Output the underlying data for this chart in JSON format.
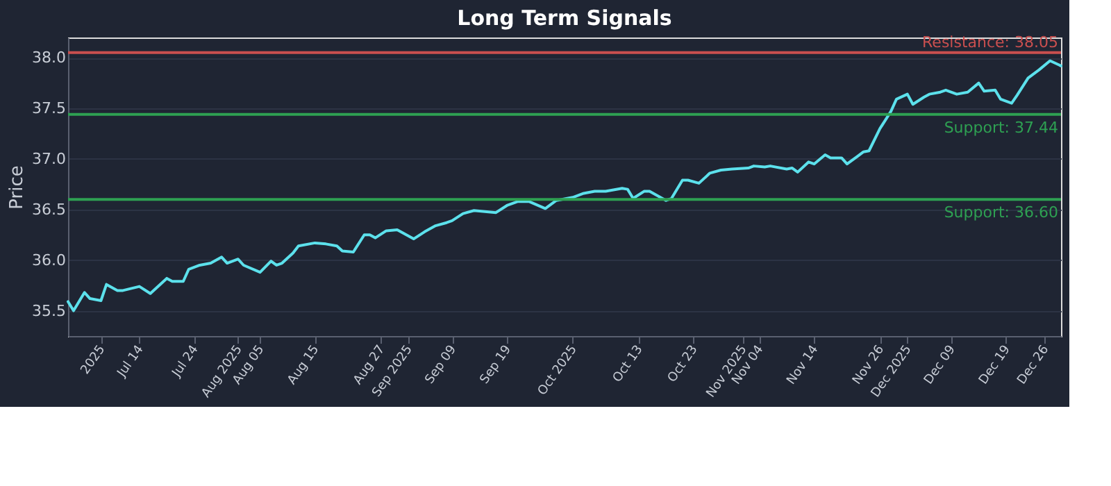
{
  "chart_data": {
    "type": "line",
    "title": "Long Term Signals",
    "ylabel": "Price",
    "x": [
      "2025-07-01",
      "2025-07-02",
      "2025-07-04",
      "2025-07-05",
      "2025-07-07",
      "2025-07-08",
      "2025-07-10",
      "2025-07-11",
      "2025-07-14",
      "2025-07-16",
      "2025-07-19",
      "2025-07-20",
      "2025-07-22",
      "2025-07-23",
      "2025-07-25",
      "2025-07-27",
      "2025-07-29",
      "2025-07-30",
      "2025-08-01",
      "2025-08-02",
      "2025-08-05",
      "2025-08-07",
      "2025-08-08",
      "2025-08-09",
      "2025-08-11",
      "2025-08-12",
      "2025-08-15",
      "2025-08-17",
      "2025-08-19",
      "2025-08-20",
      "2025-08-22",
      "2025-08-24",
      "2025-08-25",
      "2025-08-26",
      "2025-08-28",
      "2025-08-30",
      "2025-09-02",
      "2025-09-04",
      "2025-09-06",
      "2025-09-08",
      "2025-09-09",
      "2025-09-11",
      "2025-09-13",
      "2025-09-17",
      "2025-09-19",
      "2025-09-21",
      "2025-09-23",
      "2025-09-26",
      "2025-09-28",
      "2025-10-01",
      "2025-10-02",
      "2025-10-03",
      "2025-10-05",
      "2025-10-07",
      "2025-10-10",
      "2025-10-11",
      "2025-10-12",
      "2025-10-14",
      "2025-10-15",
      "2025-10-18",
      "2025-10-19",
      "2025-10-21",
      "2025-10-22",
      "2025-10-24",
      "2025-10-26",
      "2025-10-28",
      "2025-10-30",
      "2025-11-02",
      "2025-11-03",
      "2025-11-05",
      "2025-11-06",
      "2025-11-09",
      "2025-11-10",
      "2025-11-11",
      "2025-11-13",
      "2025-11-14",
      "2025-11-16",
      "2025-11-17",
      "2025-11-19",
      "2025-11-20",
      "2025-11-22",
      "2025-11-23",
      "2025-11-24",
      "2025-11-26",
      "2025-11-28",
      "2025-11-29",
      "2025-12-01",
      "2025-12-02",
      "2025-12-04",
      "2025-12-05",
      "2025-12-07",
      "2025-12-08",
      "2025-12-10",
      "2025-12-12",
      "2025-12-14",
      "2025-12-15",
      "2025-12-17",
      "2025-12-18",
      "2025-12-20",
      "2025-12-21",
      "2025-12-23",
      "2025-12-25",
      "2025-12-27",
      "2025-12-29"
    ],
    "series": [
      {
        "color": "#5ce1ec",
        "values": [
          35.59,
          35.5,
          35.68,
          35.62,
          35.6,
          35.76,
          35.7,
          35.7,
          35.74,
          35.67,
          35.82,
          35.79,
          35.79,
          35.91,
          35.95,
          35.97,
          36.03,
          35.97,
          36.01,
          35.95,
          35.88,
          35.99,
          35.95,
          35.97,
          36.07,
          36.14,
          36.17,
          36.16,
          36.14,
          36.09,
          36.08,
          36.25,
          36.25,
          36.22,
          36.29,
          36.3,
          36.21,
          36.28,
          36.34,
          36.37,
          36.39,
          36.46,
          36.49,
          36.47,
          36.54,
          36.58,
          36.58,
          36.51,
          36.59,
          36.62,
          36.64,
          36.66,
          36.68,
          36.68,
          36.71,
          36.7,
          36.61,
          36.68,
          36.68,
          36.59,
          36.61,
          36.79,
          36.79,
          36.76,
          36.86,
          36.89,
          36.9,
          36.91,
          36.93,
          36.92,
          36.93,
          36.9,
          36.91,
          36.87,
          36.97,
          36.95,
          37.04,
          37.01,
          37.01,
          36.95,
          37.03,
          37.07,
          37.08,
          37.3,
          37.47,
          37.59,
          37.64,
          37.54,
          37.61,
          37.64,
          37.66,
          37.68,
          37.64,
          37.66,
          37.75,
          37.67,
          37.68,
          37.59,
          37.55,
          37.63,
          37.8,
          37.88,
          37.97,
          37.92
        ]
      }
    ],
    "xlim": [
      "2025-07-01",
      "2025-12-29"
    ],
    "xticks": [
      {
        "value": "2025-07-07",
        "label": "2025"
      },
      {
        "value": "2025-07-14",
        "label": "Jul 14"
      },
      {
        "value": "2025-07-24",
        "label": "Jul 24"
      },
      {
        "value": "2025-08-01",
        "label": "Aug 2025"
      },
      {
        "value": "2025-08-05",
        "label": "Aug 05"
      },
      {
        "value": "2025-08-15",
        "label": "Aug 15"
      },
      {
        "value": "2025-08-27",
        "label": "Aug 27"
      },
      {
        "value": "2025-09-01",
        "label": "Sep 2025"
      },
      {
        "value": "2025-09-09",
        "label": "Sep 09"
      },
      {
        "value": "2025-09-19",
        "label": "Sep 19"
      },
      {
        "value": "2025-10-01",
        "label": "Oct 2025"
      },
      {
        "value": "2025-10-13",
        "label": "Oct 13"
      },
      {
        "value": "2025-10-23",
        "label": "Oct 23"
      },
      {
        "value": "2025-11-01",
        "label": "Nov 2025"
      },
      {
        "value": "2025-11-04",
        "label": "Nov 04"
      },
      {
        "value": "2025-11-14",
        "label": "Nov 14"
      },
      {
        "value": "2025-11-26",
        "label": "Nov 26"
      },
      {
        "value": "2025-12-01",
        "label": "Dec 2025"
      },
      {
        "value": "2025-12-09",
        "label": "Dec 09"
      },
      {
        "value": "2025-12-19",
        "label": "Dec 19"
      },
      {
        "value": "2025-12-26",
        "label": "Dec 26"
      }
    ],
    "ylim": [
      35.25,
      38.2
    ],
    "yticks": [
      {
        "value": 35.5,
        "label": "35.5"
      },
      {
        "value": 36,
        "label": "36.0"
      },
      {
        "value": 36.5,
        "label": "36.5"
      },
      {
        "value": 37,
        "label": "37.0"
      },
      {
        "value": 37.5,
        "label": "37.5"
      },
      {
        "value": 38,
        "label": "38.0"
      }
    ],
    "grid": "y",
    "marker": "none",
    "line_style": "solid",
    "ref_lines": [
      {
        "axis": "y",
        "value": 38.05,
        "label": "Resistance: 38.05",
        "color": "#c94f4f"
      },
      {
        "axis": "y",
        "value": 37.44,
        "label": "Support: 37.44",
        "color": "#2ea052"
      },
      {
        "axis": "y",
        "value": 36.6,
        "label": "Support: 36.60",
        "color": "#2ea052"
      }
    ]
  }
}
